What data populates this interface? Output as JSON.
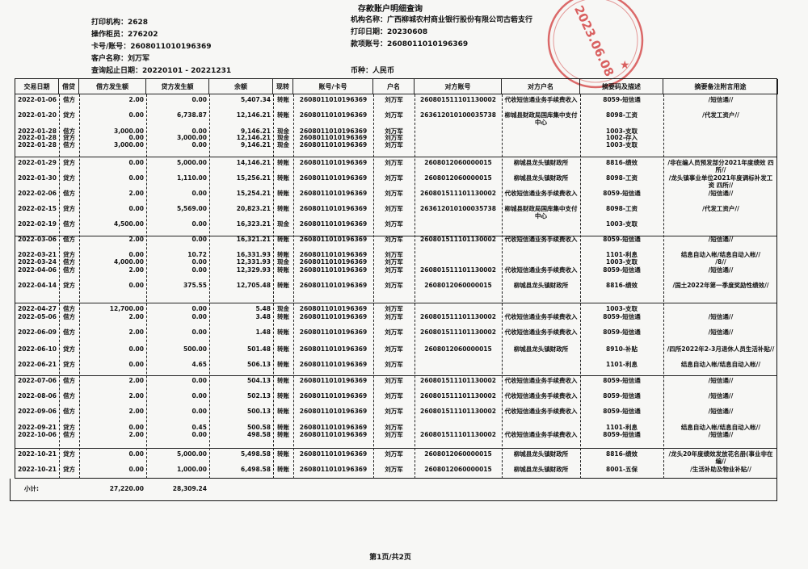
{
  "title": "存款账户明细查询",
  "info_left": [
    "打印机构：2628",
    "操作柜员：276202",
    "卡号/账号：2608011010196369",
    "客户名称：刘万军",
    "查询起止日期：20220101  -  20221231"
  ],
  "info_right": [
    "机构名称：广西柳城农村商业银行股份有限公司古砦支行",
    "打印日期：20230608",
    "款项账号：2608011010196369",
    "币种：人民币"
  ],
  "stamp": {
    "text": "2023.06.08",
    "color": "#d23a3a"
  },
  "columns": [
    "交易日期",
    "借贷",
    "借方发生额",
    "贷方发生额",
    "余额",
    "现转",
    "账号/卡号",
    "户名",
    "对方账号",
    "对方户名",
    "摘要码及描述",
    "摘要备注附言用途"
  ],
  "rows": [
    [
      "2022-01-06",
      "借方",
      "2.00",
      "0.00",
      "5,407.34",
      "转账",
      "2608011010196369",
      "刘万军",
      "260801511101130002",
      "代收短信通业务手续费收入",
      "8059-短信通",
      "/短信通//"
    ],
    [
      "2022-01-20",
      "贷方",
      "0.00",
      "6,738.87",
      "12,146.21",
      "转账",
      "2608011010196369",
      "刘万军",
      "263612010100035738",
      "柳城县财政局国库集中支付中心",
      "8098-工资",
      "/代发工资户//"
    ],
    [
      "2022-01-28",
      "借方",
      "3,000.00",
      "0.00",
      "9,146.21",
      "现金",
      "2608011010196369",
      "刘万军",
      "",
      "",
      "1003-支取",
      ""
    ],
    [
      "2022-01-28",
      "贷方",
      "0.00",
      "3,000.00",
      "12,146.21",
      "现金",
      "2608011010196369",
      "刘万军",
      "",
      "",
      "1002-存入",
      ""
    ],
    [
      "2022-01-28",
      "借方",
      "3,000.00",
      "0.00",
      "9,146.21",
      "现金",
      "2608011010196369",
      "刘万军",
      "",
      "",
      "1003-支取",
      ""
    ],
    [
      "2022-01-29",
      "贷方",
      "0.00",
      "5,000.00",
      "14,146.21",
      "转账",
      "2608011010196369",
      "刘万军",
      "2608012060000015",
      "柳城县龙头镇财政所",
      "8816-绩效",
      "/非在编人员预发部分2021年度绩效 四所//"
    ],
    [
      "2022-01-30",
      "贷方",
      "0.00",
      "1,110.00",
      "15,256.21",
      "转账",
      "2608011010196369",
      "刘万军",
      "2608012060000015",
      "柳城县龙头镇财政所",
      "8098-工资",
      "/龙头镇事业单位2021年度调标补发工资 四所//"
    ],
    [
      "2022-02-06",
      "借方",
      "2.00",
      "0.00",
      "15,254.21",
      "转账",
      "2608011010196369",
      "刘万军",
      "260801511101130002",
      "代收短信通业务手续费收入",
      "8059-短信通",
      "/短信通//"
    ],
    [
      "2022-02-15",
      "贷方",
      "0.00",
      "5,569.00",
      "20,823.21",
      "转账",
      "2608011010196369",
      "刘万军",
      "263612010100035738",
      "柳城县财政局国库集中支付中心",
      "8098-工资",
      "/代发工资户//"
    ],
    [
      "2022-02-19",
      "借方",
      "4,500.00",
      "0.00",
      "16,323.21",
      "现金",
      "2608011010196369",
      "刘万军",
      "",
      "",
      "1003-支取",
      ""
    ],
    [
      "2022-03-06",
      "借方",
      "2.00",
      "0.00",
      "16,321.21",
      "转账",
      "2608011010196369",
      "刘万军",
      "260801511101130002",
      "代收短信通业务手续费收入",
      "8059-短信通",
      "/短信通//"
    ],
    [
      "2022-03-21",
      "贷方",
      "0.00",
      "10.72",
      "16,331.93",
      "转账",
      "2608011010196369",
      "刘万军",
      "",
      "",
      "1101-利息",
      "结息自动入帐/结息自动入帐//"
    ],
    [
      "2022-03-24",
      "借方",
      "4,000.00",
      "0.00",
      "12,331.93",
      "现金",
      "2608011010196369",
      "刘万军",
      "",
      "",
      "1003-支取",
      "/8//"
    ],
    [
      "2022-04-06",
      "借方",
      "2.00",
      "0.00",
      "12,329.93",
      "转账",
      "2608011010196369",
      "刘万军",
      "260801511101130002",
      "代收短信通业务手续费收入",
      "8059-短信通",
      "/短信通//"
    ],
    [
      "2022-04-14",
      "贷方",
      "0.00",
      "375.55",
      "12,705.48",
      "转账",
      "2608011010196369",
      "刘万军",
      "2608012060000015",
      "柳城县龙头镇财政所",
      "8816-绩效",
      "/国土2022年第一季度奖励性绩效//"
    ],
    [
      "2022-04-27",
      "借方",
      "12,700.00",
      "0.00",
      "5.48",
      "现金",
      "2608011010196369",
      "刘万军",
      "",
      "",
      "1003-支取",
      ""
    ],
    [
      "2022-05-06",
      "借方",
      "2.00",
      "0.00",
      "3.48",
      "转账",
      "2608011010196369",
      "刘万军",
      "260801511101130002",
      "代收短信通业务手续费收入",
      "8059-短信通",
      "/短信通//"
    ],
    [
      "2022-06-09",
      "借方",
      "2.00",
      "0.00",
      "1.48",
      "转账",
      "2608011010196369",
      "刘万军",
      "260801511101130002",
      "代收短信通业务手续费收入",
      "8059-短信通",
      "/短信通//"
    ],
    [
      "2022-06-10",
      "贷方",
      "0.00",
      "500.00",
      "501.48",
      "转账",
      "2608011010196369",
      "刘万军",
      "2608012060000015",
      "柳城县龙头镇财政所",
      "8910-补贴",
      "/四所2022年2-3月退休人员生活补贴//"
    ],
    [
      "2022-06-21",
      "贷方",
      "0.00",
      "4.65",
      "506.13",
      "转账",
      "2608011010196369",
      "刘万军",
      "",
      "",
      "1101-利息",
      "结息自动入帐/结息自动入帐//"
    ],
    [
      "2022-07-06",
      "借方",
      "2.00",
      "0.00",
      "504.13",
      "转账",
      "2608011010196369",
      "刘万军",
      "260801511101130002",
      "代收短信通业务手续费收入",
      "8059-短信通",
      "/短信通//"
    ],
    [
      "2022-08-06",
      "借方",
      "2.00",
      "0.00",
      "502.13",
      "转账",
      "2608011010196369",
      "刘万军",
      "260801511101130002",
      "代收短信通业务手续费收入",
      "8059-短信通",
      "/短信通//"
    ],
    [
      "2022-09-06",
      "借方",
      "2.00",
      "0.00",
      "500.13",
      "转账",
      "2608011010196369",
      "刘万军",
      "260801511101130002",
      "代收短信通业务手续费收入",
      "8059-短信通",
      "/短信通//"
    ],
    [
      "2022-09-21",
      "贷方",
      "0.00",
      "0.45",
      "500.58",
      "转账",
      "2608011010196369",
      "刘万军",
      "",
      "",
      "1101-利息",
      "结息自动入帐/结息自动入帐//"
    ],
    [
      "2022-10-06",
      "借方",
      "2.00",
      "0.00",
      "498.58",
      "转账",
      "2608011010196369",
      "刘万军",
      "260801511101130002",
      "代收短信通业务手续费收入",
      "8059-短信通",
      "/短信通//"
    ],
    [
      "2022-10-21",
      "贷方",
      "0.00",
      "5,000.00",
      "5,498.58",
      "转账",
      "2608011010196369",
      "刘万军",
      "2608012060000015",
      "柳城县龙头镇财政所",
      "8816-绩效",
      "/龙头20年度绩效发放花名册(事业非在编//"
    ],
    [
      "2022-10-21",
      "贷方",
      "0.00",
      "1,000.00",
      "6,498.58",
      "转账",
      "2608011010196369",
      "刘万军",
      "2608012060000015",
      "柳城县龙头镇财政所",
      "8001-五保",
      "/生活补助及物业补贴//"
    ]
  ],
  "subtotal": {
    "label": "小计:",
    "debit": "27,220.00",
    "credit": "28,309.24"
  },
  "footer": "第1页/共2页"
}
